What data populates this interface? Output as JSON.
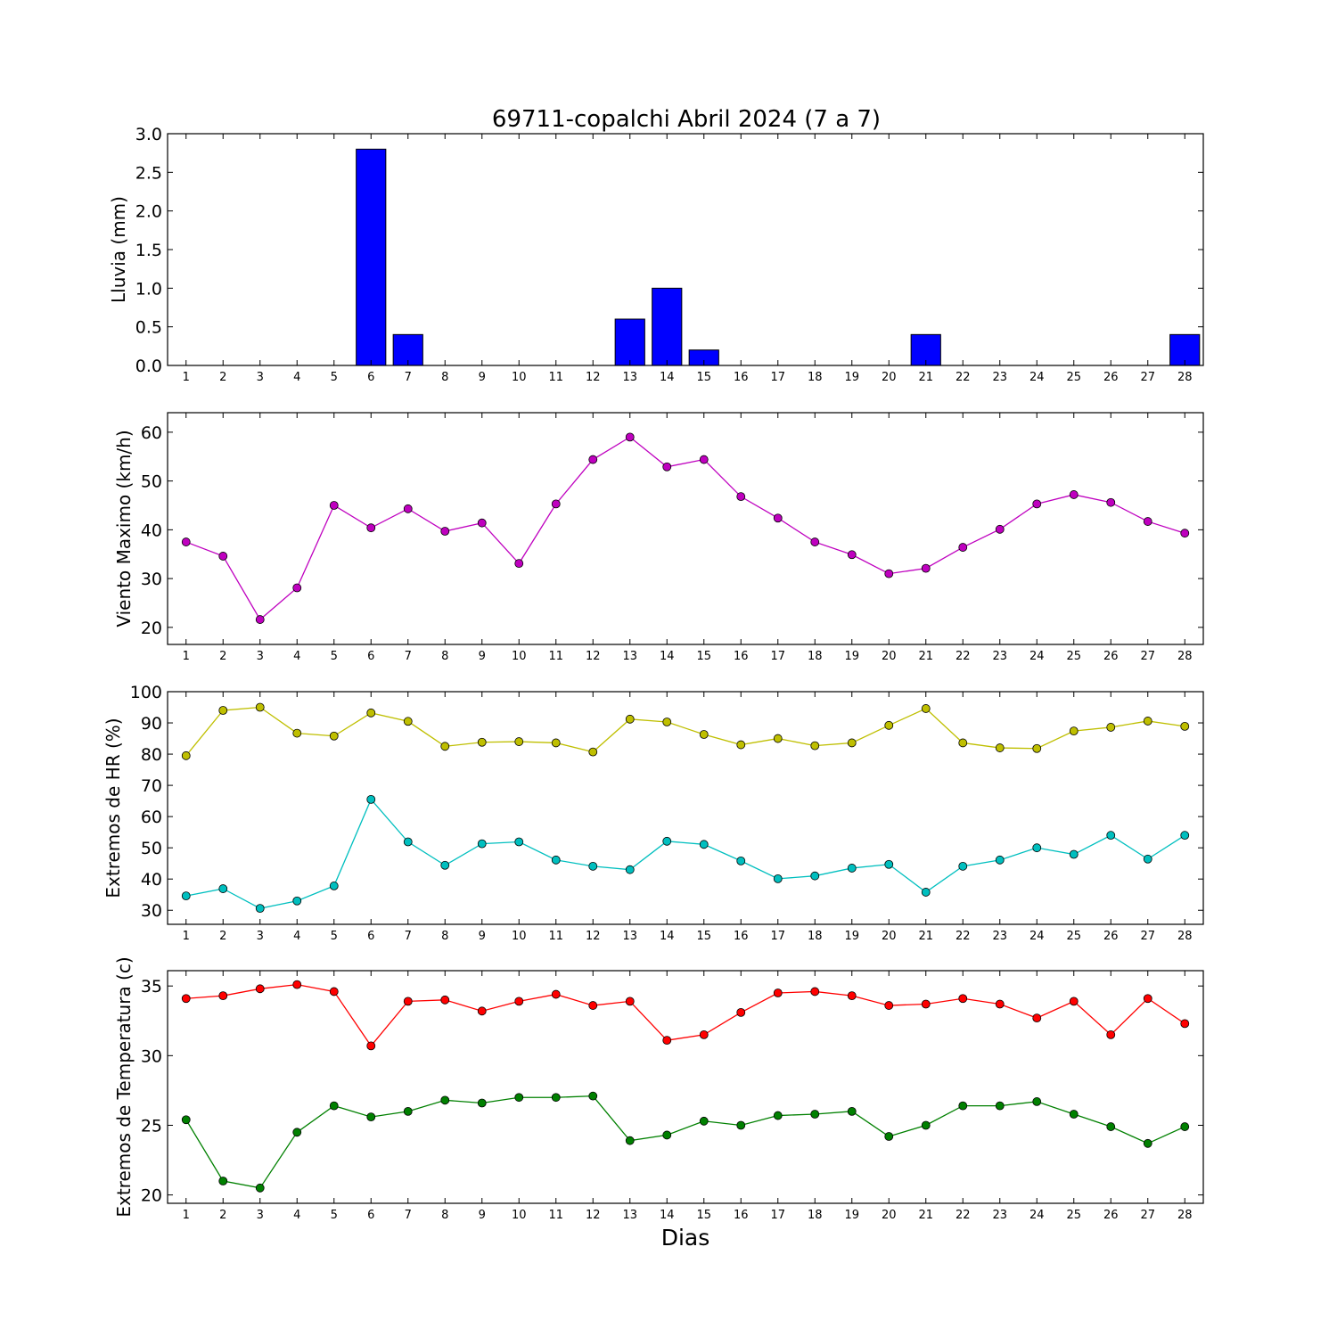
{
  "chart_data": {
    "title": "69711-copalchi Abril 2024  (7 a 7)",
    "xlabel": "Dias",
    "x": [
      1,
      2,
      3,
      4,
      5,
      6,
      7,
      8,
      9,
      10,
      11,
      12,
      13,
      14,
      15,
      16,
      17,
      18,
      19,
      20,
      21,
      22,
      23,
      24,
      25,
      26,
      27,
      28
    ],
    "panels": [
      {
        "type": "bar",
        "ylabel": "Lluvia (mm)",
        "ylim": [
          0,
          3.0
        ],
        "yticks": [
          "0.0",
          "0.5",
          "1.0",
          "1.5",
          "2.0",
          "2.5",
          "3.0"
        ],
        "series": [
          {
            "color": "#0000ff",
            "values": [
              0,
              0,
              0,
              0,
              0,
              2.8,
              0.4,
              0,
              0,
              0,
              0,
              0,
              0.6,
              1.0,
              0.2,
              0,
              0,
              0,
              0,
              0,
              0.4,
              0,
              0,
              0,
              0,
              0,
              0,
              0.4
            ]
          }
        ]
      },
      {
        "type": "line",
        "ylabel": "Viento Maximo (km/h)",
        "ylim": [
          16.5,
          64
        ],
        "yticks": [
          "20",
          "30",
          "40",
          "50",
          "60"
        ],
        "series": [
          {
            "color": "#bf00bf",
            "values": [
              37.5,
              34.6,
              21.6,
              28.1,
              45,
              40.4,
              44.3,
              39.7,
              41.4,
              33.1,
              45.3,
              54.4,
              59,
              52.9,
              54.4,
              46.8,
              42.4,
              37.5,
              34.9,
              31,
              32.1,
              36.4,
              40.1,
              45.3,
              47.2,
              45.6,
              41.7,
              39.3
            ]
          }
        ]
      },
      {
        "type": "line",
        "ylabel": "Extremos de HR (%)",
        "ylim": [
          25.5,
          100
        ],
        "yticks": [
          "30",
          "40",
          "50",
          "60",
          "70",
          "80",
          "90",
          "100"
        ],
        "series": [
          {
            "color": "#bfbf00",
            "values": [
              79.5,
              94,
              95,
              86.7,
              85.8,
              93.2,
              90.5,
              82.5,
              83.8,
              84,
              83.6,
              80.7,
              91.2,
              90.3,
              86.3,
              83,
              85,
              82.7,
              83.6,
              89.2,
              94.6,
              83.6,
              82,
              81.8,
              87.4,
              88.6,
              90.6,
              88.9
            ]
          },
          {
            "color": "#00bfbf",
            "values": [
              34.6,
              36.9,
              30.6,
              33,
              37.8,
              65.5,
              51.9,
              44.4,
              51.3,
              51.9,
              46.1,
              44.1,
              43,
              52.1,
              51.1,
              45.8,
              40.1,
              41,
              43.5,
              44.7,
              35.8,
              44.1,
              46.1,
              50,
              47.9,
              54,
              46.4,
              54
            ]
          }
        ]
      },
      {
        "type": "line",
        "ylabel": "Extremos de Temperatura (c)",
        "ylim": [
          19.4,
          36.1
        ],
        "yticks": [
          "20",
          "25",
          "30",
          "35"
        ],
        "series": [
          {
            "color": "#ff0000",
            "values": [
              34.1,
              34.3,
              34.8,
              35.1,
              34.6,
              30.7,
              33.9,
              34,
              33.2,
              33.9,
              34.4,
              33.6,
              33.9,
              31.1,
              31.5,
              33.1,
              34.5,
              34.6,
              34.3,
              33.6,
              33.7,
              34.1,
              33.7,
              32.7,
              33.9,
              31.5,
              34.1,
              32.3
            ]
          },
          {
            "color": "#008000",
            "values": [
              25.4,
              21,
              20.5,
              24.5,
              26.4,
              25.6,
              26,
              26.8,
              26.6,
              27,
              27,
              27.1,
              23.9,
              24.3,
              25.3,
              25,
              25.7,
              25.8,
              26,
              24.2,
              25,
              26.4,
              26.4,
              26.7,
              25.8,
              24.9,
              23.7,
              24.9
            ]
          }
        ]
      }
    ]
  }
}
